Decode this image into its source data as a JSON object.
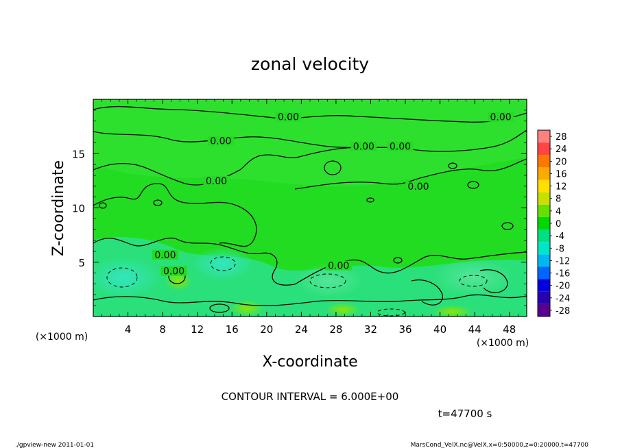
{
  "chart_data": {
    "type": "heatmap",
    "title": "zonal velocity",
    "xlabel": "X-coordinate",
    "ylabel": "Z-coordinate",
    "x_unit": "(×1000 m)",
    "y_unit": "(×1000 m)",
    "xlim": [
      0,
      50
    ],
    "ylim": [
      0,
      20
    ],
    "x_ticks": [
      4,
      8,
      12,
      16,
      20,
      24,
      28,
      32,
      36,
      40,
      44,
      48
    ],
    "y_ticks": [
      5,
      10,
      15
    ],
    "colorbar": {
      "levels": [
        28,
        24,
        20,
        16,
        12,
        8,
        4,
        0,
        -4,
        -8,
        -12,
        -16,
        -20,
        -24,
        -28
      ],
      "colors": [
        "#ff8080",
        "#ff4444",
        "#ff7700",
        "#ffaa00",
        "#ffe000",
        "#c8e000",
        "#66e000",
        "#00d800",
        "#00e080",
        "#00e6c8",
        "#00b8f0",
        "#0066ff",
        "#0000e0",
        "#2a00b0",
        "#5a0090"
      ]
    },
    "contour_label": "0.00",
    "contour_labels": [
      {
        "x": 22.5,
        "z": 18.2,
        "text": "0.00"
      },
      {
        "x": 14.7,
        "z": 16.0,
        "text": "0.00"
      },
      {
        "x": 31.2,
        "z": 15.5,
        "text": "0.00"
      },
      {
        "x": 35.4,
        "z": 15.5,
        "text": "0.00"
      },
      {
        "x": 47.0,
        "z": 18.2,
        "text": "0.00"
      },
      {
        "x": 14.2,
        "z": 12.3,
        "text": "0.00"
      },
      {
        "x": 37.5,
        "z": 11.8,
        "text": "0.00"
      },
      {
        "x": 8.3,
        "z": 5.5,
        "text": "0.00"
      },
      {
        "x": 9.3,
        "z": 4.0,
        "text": "0.00"
      },
      {
        "x": 28.3,
        "z": 4.5,
        "text": "0.00"
      }
    ],
    "negative_regions": [
      {
        "x": 3.5,
        "z": 3.5,
        "value": -8
      },
      {
        "x": 14.8,
        "z": 5.0,
        "value": -8
      },
      {
        "x": 27.0,
        "z": 3.8,
        "value": -6
      },
      {
        "x": 43.5,
        "z": 3.5,
        "value": -6
      }
    ]
  },
  "contour_interval": "CONTOUR INTERVAL = 6.000E+00",
  "time_label": "t=47700 s",
  "footer_left": "./gpview-new  2011-01-01",
  "footer_right": "MarsCond_VelX.nc@VelX,x=0:50000,z=0:20000,t=47700"
}
